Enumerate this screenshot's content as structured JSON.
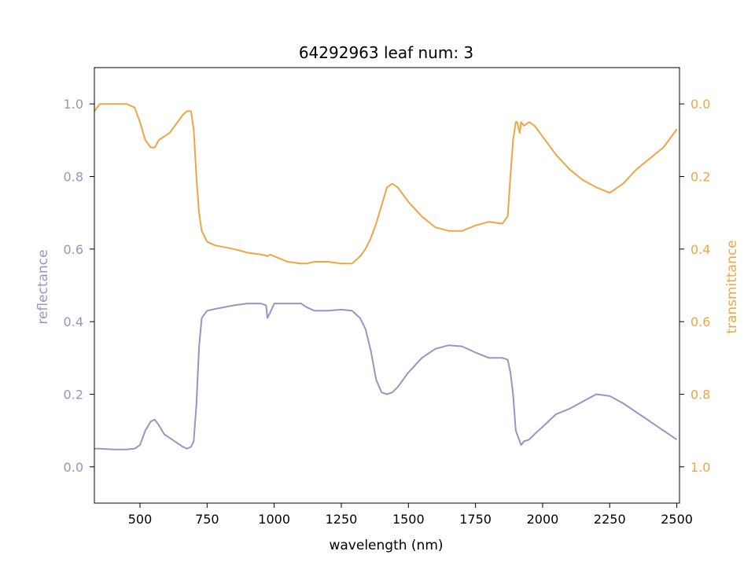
{
  "chart_data": {
    "type": "line",
    "title": "64292963 leaf num: 3",
    "xlabel": "wavelength (nm)",
    "ylabel_left": "reflectance",
    "ylabel_right": "transmittance",
    "xlim": [
      330,
      2510
    ],
    "ylim_left": [
      -0.1,
      1.1
    ],
    "ylim_right_inverted": [
      1.1,
      -0.1
    ],
    "x_ticks": [
      500,
      750,
      1000,
      1250,
      1500,
      1750,
      2000,
      2250,
      2500
    ],
    "y_ticks_left": [
      0.0,
      0.2,
      0.4,
      0.6,
      0.8,
      1.0
    ],
    "y_ticks_right": [
      0.0,
      0.2,
      0.4,
      0.6,
      0.8,
      1.0
    ],
    "grid": false,
    "colors": {
      "reflectance": "#9894c3",
      "transmittance": "#eea545",
      "axis": "#000000"
    },
    "series": [
      {
        "name": "reflectance",
        "axis": "left",
        "x": [
          330,
          350,
          400,
          450,
          480,
          500,
          520,
          540,
          555,
          570,
          590,
          610,
          640,
          660,
          675,
          690,
          700,
          710,
          720,
          730,
          750,
          780,
          850,
          900,
          950,
          970,
          975,
          985,
          1000,
          1050,
          1100,
          1120,
          1150,
          1200,
          1250,
          1290,
          1320,
          1340,
          1360,
          1380,
          1400,
          1420,
          1440,
          1460,
          1480,
          1500,
          1550,
          1600,
          1650,
          1700,
          1750,
          1800,
          1850,
          1870,
          1880,
          1890,
          1900,
          1905,
          1915,
          1920,
          1930,
          1950,
          1970,
          2000,
          2050,
          2100,
          2150,
          2200,
          2250,
          2300,
          2350,
          2400,
          2450,
          2500
        ],
        "y": [
          0.05,
          0.05,
          0.048,
          0.048,
          0.05,
          0.06,
          0.1,
          0.125,
          0.13,
          0.115,
          0.09,
          0.08,
          0.065,
          0.055,
          0.05,
          0.055,
          0.07,
          0.17,
          0.33,
          0.41,
          0.43,
          0.435,
          0.445,
          0.45,
          0.45,
          0.445,
          0.41,
          0.425,
          0.45,
          0.45,
          0.45,
          0.44,
          0.43,
          0.43,
          0.433,
          0.43,
          0.41,
          0.38,
          0.32,
          0.24,
          0.205,
          0.2,
          0.205,
          0.22,
          0.24,
          0.26,
          0.3,
          0.325,
          0.335,
          0.332,
          0.315,
          0.3,
          0.3,
          0.295,
          0.26,
          0.2,
          0.1,
          0.09,
          0.07,
          0.06,
          0.07,
          0.075,
          0.09,
          0.11,
          0.145,
          0.16,
          0.18,
          0.2,
          0.195,
          0.175,
          0.15,
          0.125,
          0.1,
          0.075
        ]
      },
      {
        "name": "transmittance",
        "axis": "right",
        "x": [
          330,
          350,
          400,
          450,
          480,
          500,
          520,
          540,
          555,
          570,
          590,
          610,
          640,
          660,
          675,
          690,
          700,
          710,
          720,
          730,
          750,
          780,
          850,
          900,
          950,
          970,
          975,
          985,
          1000,
          1050,
          1100,
          1120,
          1150,
          1200,
          1250,
          1290,
          1320,
          1340,
          1360,
          1380,
          1400,
          1420,
          1440,
          1460,
          1480,
          1500,
          1550,
          1600,
          1650,
          1700,
          1750,
          1800,
          1850,
          1870,
          1880,
          1890,
          1900,
          1905,
          1915,
          1920,
          1930,
          1950,
          1970,
          2000,
          2050,
          2100,
          2150,
          2200,
          2250,
          2300,
          2350,
          2400,
          2450,
          2500
        ],
        "y": [
          0.02,
          0.0,
          0.0,
          0.0,
          0.01,
          0.05,
          0.1,
          0.12,
          0.12,
          0.1,
          0.09,
          0.08,
          0.05,
          0.03,
          0.02,
          0.02,
          0.07,
          0.2,
          0.3,
          0.35,
          0.38,
          0.39,
          0.4,
          0.41,
          0.415,
          0.418,
          0.42,
          0.415,
          0.42,
          0.435,
          0.44,
          0.44,
          0.435,
          0.435,
          0.44,
          0.44,
          0.42,
          0.4,
          0.37,
          0.33,
          0.28,
          0.23,
          0.22,
          0.23,
          0.25,
          0.27,
          0.31,
          0.34,
          0.35,
          0.35,
          0.335,
          0.325,
          0.33,
          0.31,
          0.2,
          0.1,
          0.05,
          0.05,
          0.08,
          0.05,
          0.06,
          0.05,
          0.06,
          0.09,
          0.14,
          0.18,
          0.21,
          0.23,
          0.245,
          0.22,
          0.18,
          0.15,
          0.12,
          0.07
        ]
      }
    ]
  }
}
